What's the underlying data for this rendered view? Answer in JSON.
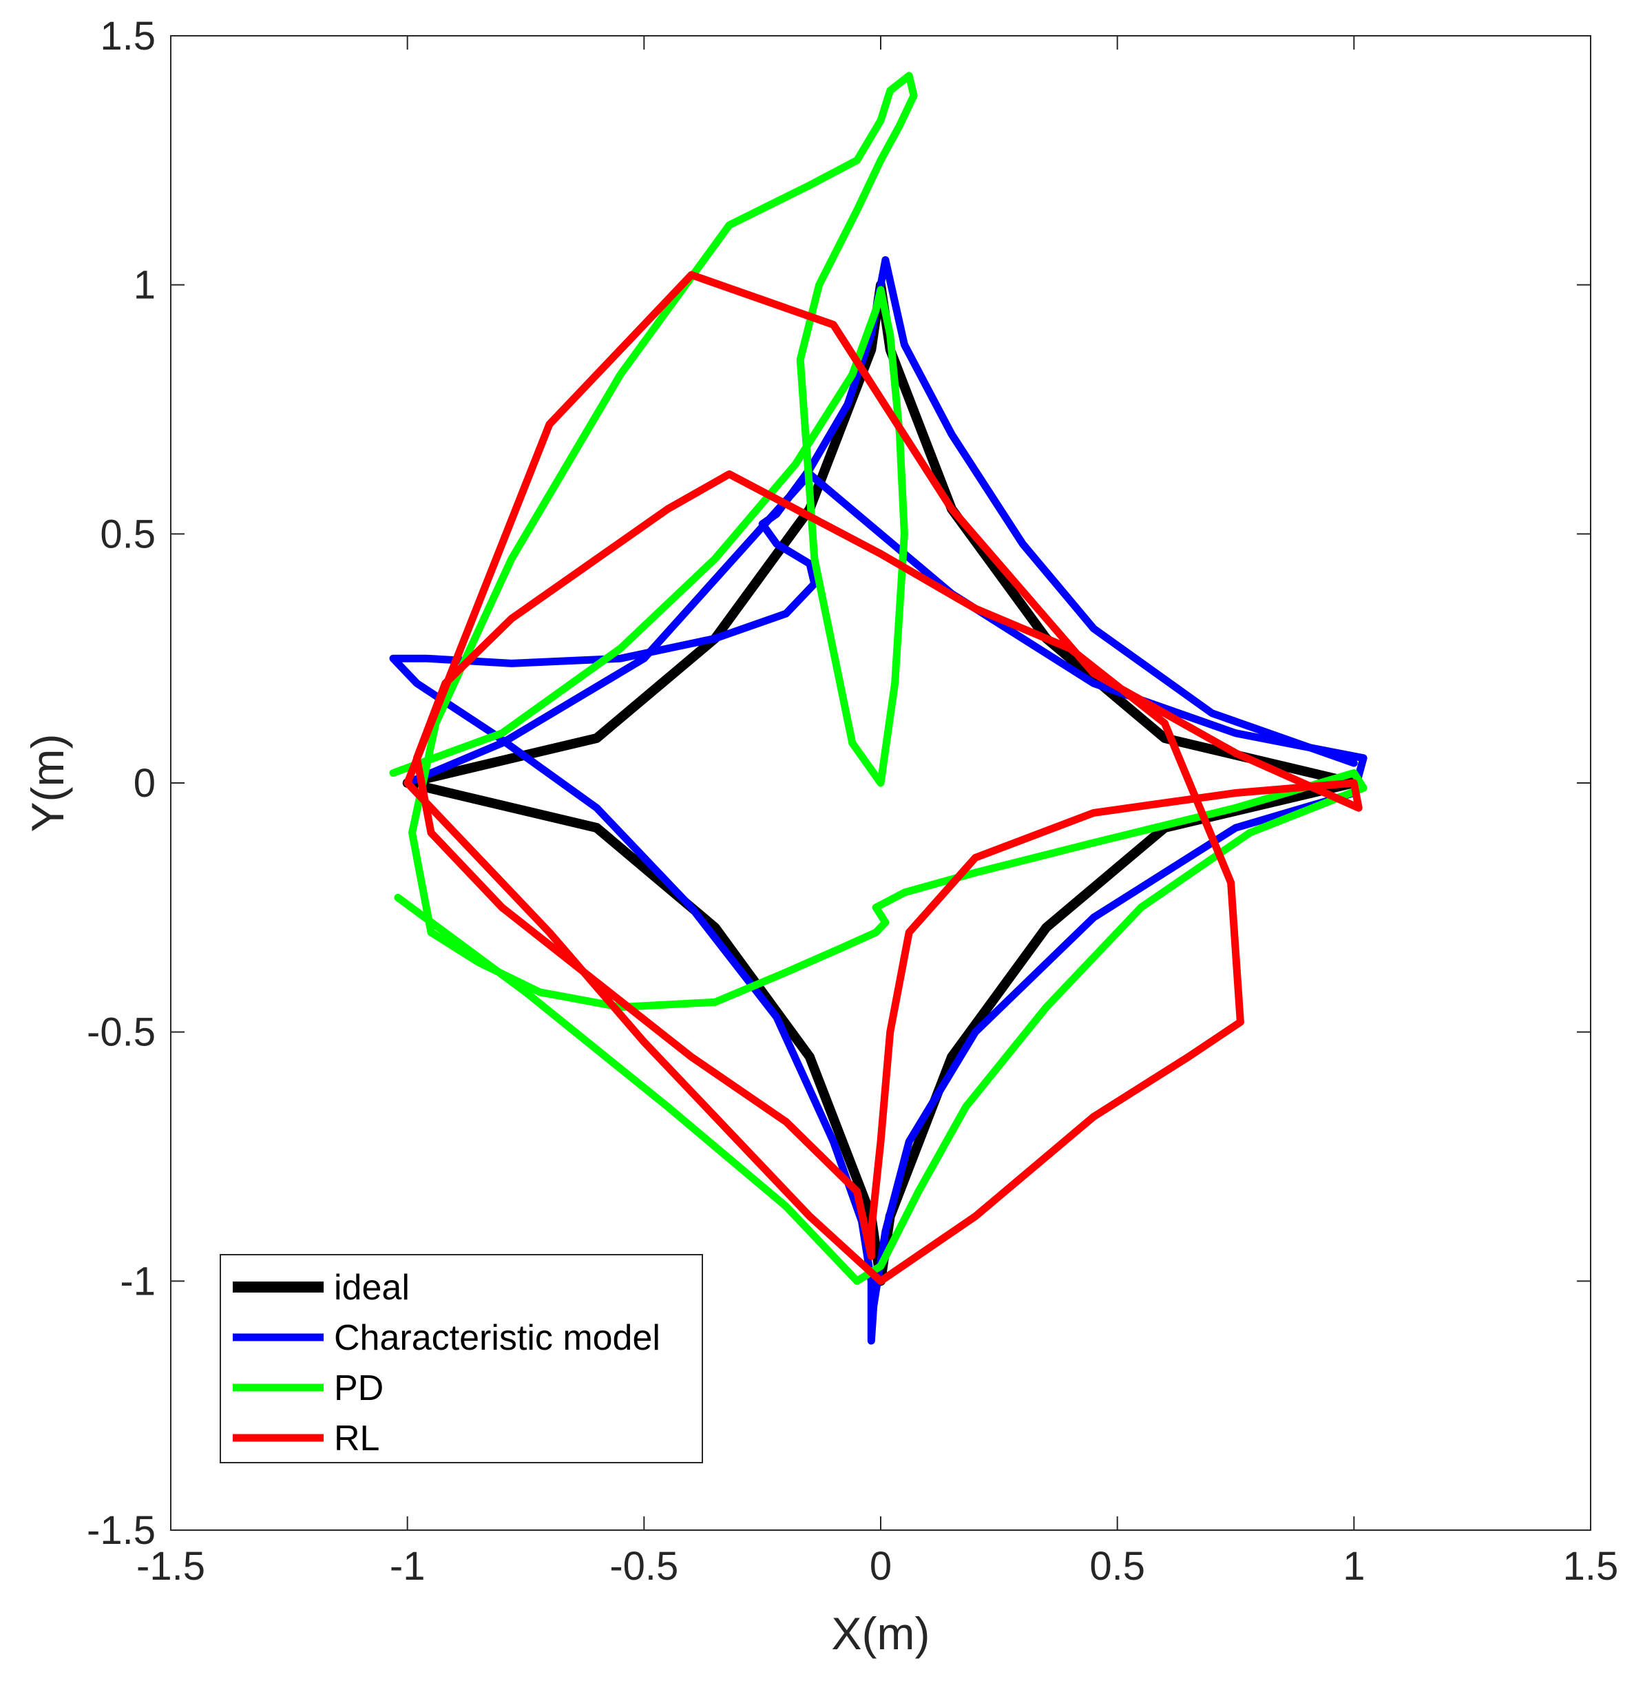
{
  "chart_data": {
    "type": "line",
    "title": "",
    "xlabel": "X(m)",
    "ylabel": "Y(m)",
    "xlim": [
      -1.5,
      1.5
    ],
    "ylim": [
      -1.5,
      1.5
    ],
    "xticks": [
      -1.5,
      -1,
      -0.5,
      0,
      0.5,
      1,
      1.5
    ],
    "yticks": [
      -1.5,
      -1,
      -0.5,
      0,
      0.5,
      1,
      1.5
    ],
    "xtick_labels": [
      "-1.5",
      "-1",
      "-0.5",
      "0",
      "0.5",
      "1",
      "1.5"
    ],
    "ytick_labels": [
      "-1.5",
      "-1",
      "-0.5",
      "0",
      "0.5",
      "1",
      "1.5"
    ],
    "grid": false,
    "legend_position": "bottom-left",
    "series": [
      {
        "name": "ideal",
        "color": "#000000",
        "x": [
          1,
          0.6,
          0.35,
          0.15,
          0.02,
          0,
          -0.02,
          -0.15,
          -0.35,
          -0.6,
          -1,
          -0.6,
          -0.35,
          -0.15,
          -0.02,
          0,
          0.02,
          0.15,
          0.35,
          0.6,
          1
        ],
        "y": [
          0,
          0.09,
          0.29,
          0.55,
          0.87,
          1,
          0.87,
          0.55,
          0.29,
          0.09,
          0,
          -0.09,
          -0.29,
          -0.55,
          -0.87,
          -1,
          -0.87,
          -0.55,
          -0.29,
          -0.09,
          0
        ]
      },
      {
        "name": "Characteristic model",
        "color": "#0000ff",
        "x": [
          1.0,
          0.7,
          0.45,
          0.3,
          0.15,
          0.05,
          0.01,
          -0.02,
          -0.07,
          -0.15,
          -0.22,
          -0.25,
          -0.22,
          -0.15,
          -0.14,
          -0.2,
          -0.35,
          -0.55,
          -0.78,
          -0.96,
          -1.03,
          -0.98,
          -0.82,
          -0.6,
          -0.4,
          -0.22,
          -0.1,
          -0.04,
          -0.02,
          -0.02,
          -0.015,
          0.01,
          0.06,
          0.2,
          0.45,
          0.75,
          1.0,
          1.02,
          0.75,
          0.45,
          0.15,
          -0.15,
          -0.5,
          -0.8,
          -1.0
        ],
        "y": [
          0.04,
          0.14,
          0.31,
          0.48,
          0.7,
          0.88,
          1.05,
          0.9,
          0.76,
          0.63,
          0.54,
          0.52,
          0.48,
          0.44,
          0.4,
          0.34,
          0.29,
          0.25,
          0.24,
          0.25,
          0.25,
          0.2,
          0.1,
          -0.05,
          -0.25,
          -0.47,
          -0.72,
          -0.88,
          -1.0,
          -1.12,
          -1.05,
          -0.9,
          -0.72,
          -0.5,
          -0.27,
          -0.09,
          -0.02,
          0.05,
          0.1,
          0.2,
          0.38,
          0.62,
          0.25,
          0.08,
          0.0
        ]
      },
      {
        "name": "PD",
        "color": "#00ff00",
        "x": [
          -1.03,
          -0.8,
          -0.55,
          -0.35,
          -0.18,
          -0.06,
          -0.01,
          0.0,
          0.02,
          0.04,
          0.05,
          0.04,
          0.03,
          0.0,
          -0.06,
          -0.14,
          -0.17,
          -0.13,
          -0.05,
          0.0,
          0.04,
          0.07,
          0.06,
          0.02,
          0.0,
          -0.05,
          -0.15,
          -0.32,
          -0.55,
          -0.78,
          -0.94,
          -0.99,
          -0.95,
          -0.85,
          -0.72,
          -0.55,
          -0.35,
          -0.2,
          -0.08,
          -0.01,
          0.01,
          -0.01,
          0.05,
          0.2,
          0.45,
          0.75,
          1.0,
          1.02,
          0.78,
          0.55,
          0.35,
          0.18,
          0.08,
          0.0,
          -0.05,
          -0.2,
          -0.45,
          -0.75,
          -1.02
        ],
        "y": [
          0.02,
          0.1,
          0.27,
          0.45,
          0.64,
          0.82,
          0.95,
          0.99,
          0.9,
          0.7,
          0.5,
          0.35,
          0.2,
          0.0,
          0.08,
          0.45,
          0.85,
          1.0,
          1.15,
          1.25,
          1.32,
          1.38,
          1.42,
          1.39,
          1.33,
          1.25,
          1.2,
          1.12,
          0.82,
          0.45,
          0.12,
          -0.1,
          -0.3,
          -0.36,
          -0.42,
          -0.45,
          -0.44,
          -0.38,
          -0.33,
          -0.3,
          -0.28,
          -0.25,
          -0.22,
          -0.18,
          -0.12,
          -0.05,
          0.02,
          -0.01,
          -0.1,
          -0.25,
          -0.45,
          -0.65,
          -0.82,
          -0.97,
          -1.0,
          -0.85,
          -0.65,
          -0.42,
          -0.23
        ]
      },
      {
        "name": "RL",
        "color": "#ff0000",
        "x": [
          -1.0,
          -0.85,
          -0.7,
          -0.5,
          -0.3,
          -0.15,
          0.0,
          0.2,
          0.45,
          0.65,
          0.76,
          0.74,
          0.6,
          0.4,
          0.2,
          0.0,
          -0.2,
          -0.32,
          -0.45,
          -0.6,
          -0.78,
          -0.92,
          -0.98,
          -0.95,
          -0.8,
          -0.6,
          -0.4,
          -0.2,
          -0.05,
          -0.02,
          -0.02,
          0.0,
          0.02,
          0.06,
          0.2,
          0.45,
          0.75,
          1.0,
          1.01,
          0.75,
          0.45,
          0.15,
          -0.1,
          -0.4,
          -0.7,
          -1.0
        ],
        "y": [
          0.0,
          -0.15,
          -0.3,
          -0.52,
          -0.72,
          -0.87,
          -1.0,
          -0.87,
          -0.67,
          -0.55,
          -0.48,
          -0.2,
          0.12,
          0.27,
          0.35,
          0.46,
          0.56,
          0.62,
          0.55,
          0.45,
          0.33,
          0.2,
          0.05,
          -0.1,
          -0.25,
          -0.4,
          -0.55,
          -0.68,
          -0.82,
          -0.95,
          -0.9,
          -0.72,
          -0.5,
          -0.3,
          -0.15,
          -0.06,
          -0.02,
          0.0,
          -0.05,
          0.06,
          0.22,
          0.55,
          0.92,
          1.02,
          0.72,
          0.0
        ]
      }
    ]
  }
}
